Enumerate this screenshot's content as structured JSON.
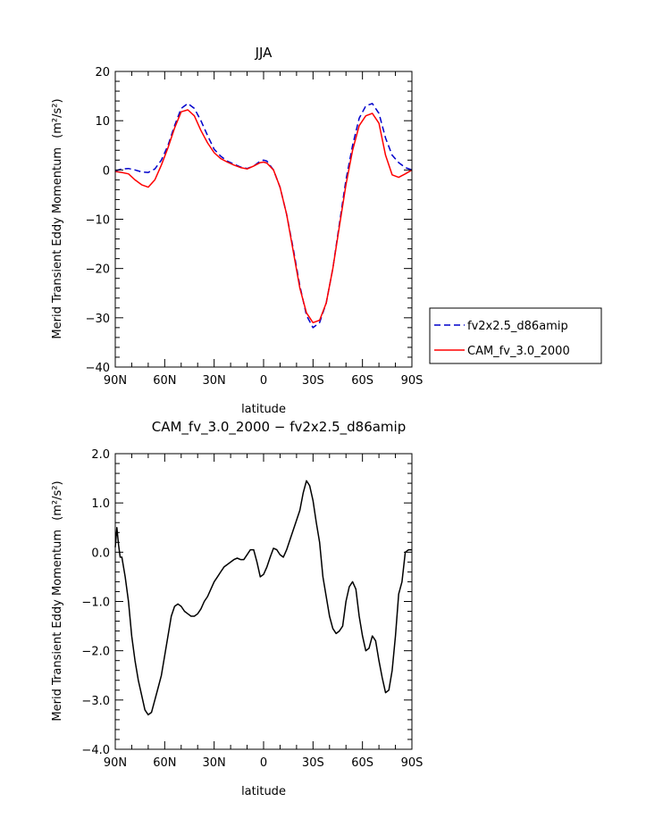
{
  "chart_data": [
    {
      "type": "line",
      "title": "JJA",
      "xlabel": "latitude",
      "ylabel": "Merid Transient Eddy Momentum",
      "ylabel_units": "(m²/s²)",
      "xlim": [
        90,
        -90
      ],
      "ylim": [
        -40,
        20
      ],
      "x_tick_values": [
        90,
        60,
        30,
        0,
        -30,
        -60,
        -90
      ],
      "x_tick_labels": [
        "90N",
        "60N",
        "30N",
        "0",
        "30S",
        "60S",
        "90S"
      ],
      "y_tick_values": [
        -40,
        -30,
        -20,
        -10,
        0,
        10,
        20
      ],
      "y_tick_labels": [
        "−40",
        "−30",
        "−20",
        "−10",
        "0",
        "10",
        "20"
      ],
      "legend_position": "right",
      "series": [
        {
          "name": "fv2x2.5_d86amip",
          "color": "#0000cc",
          "dash": "dashed",
          "x": [
            90,
            86,
            82,
            78,
            74,
            70,
            66,
            62,
            58,
            54,
            50,
            46,
            42,
            38,
            34,
            30,
            26,
            22,
            18,
            14,
            10,
            6,
            2,
            0,
            -2,
            -6,
            -10,
            -14,
            -18,
            -22,
            -26,
            -30,
            -34,
            -38,
            -42,
            -46,
            -50,
            -54,
            -58,
            -62,
            -66,
            -70,
            -74,
            -78,
            -82,
            -86,
            -90
          ],
          "values": [
            -0.2,
            0.2,
            0.3,
            0.0,
            -0.4,
            -0.5,
            0.2,
            2.0,
            5.0,
            9.0,
            12.5,
            13.5,
            12.5,
            10.0,
            7.0,
            4.2,
            2.8,
            1.8,
            1.2,
            0.6,
            0.3,
            0.8,
            1.8,
            2.0,
            1.8,
            0.0,
            -3.5,
            -9.0,
            -16.0,
            -23.5,
            -29.5,
            -32.0,
            -31.0,
            -27.0,
            -20.0,
            -11.0,
            -2.0,
            5.0,
            10.5,
            13.0,
            13.5,
            11.5,
            6.5,
            3.0,
            1.5,
            0.5,
            0.0
          ]
        },
        {
          "name": "CAM_fv_3.0_2000",
          "color": "#ff0000",
          "dash": "solid",
          "x": [
            90,
            86,
            82,
            78,
            74,
            70,
            66,
            62,
            58,
            54,
            50,
            46,
            42,
            38,
            34,
            30,
            26,
            22,
            18,
            14,
            10,
            6,
            2,
            0,
            -2,
            -6,
            -10,
            -14,
            -18,
            -22,
            -26,
            -30,
            -34,
            -38,
            -42,
            -46,
            -50,
            -54,
            -58,
            -62,
            -66,
            -70,
            -74,
            -78,
            -82,
            -86,
            -90
          ],
          "values": [
            -0.3,
            -0.5,
            -0.8,
            -2.0,
            -3.0,
            -3.5,
            -2.0,
            1.0,
            4.5,
            8.5,
            11.8,
            12.2,
            11.0,
            8.0,
            5.5,
            3.5,
            2.3,
            1.6,
            1.0,
            0.5,
            0.2,
            0.8,
            1.5,
            1.6,
            1.4,
            0.0,
            -3.5,
            -9.0,
            -16.5,
            -24.0,
            -29.0,
            -31.0,
            -30.5,
            -27.0,
            -20.0,
            -11.5,
            -3.0,
            4.0,
            9.0,
            11.0,
            11.5,
            9.5,
            3.0,
            -1.0,
            -1.5,
            -0.8,
            0.0
          ]
        }
      ]
    },
    {
      "type": "line",
      "title": "CAM_fv_3.0_2000 − fv2x2.5_d86amip",
      "xlabel": "latitude",
      "ylabel": "Merid Transient Eddy Momentum",
      "ylabel_units": "(m²/s²)",
      "xlim": [
        90,
        -90
      ],
      "ylim": [
        -4,
        2
      ],
      "x_tick_values": [
        90,
        60,
        30,
        0,
        -30,
        -60,
        -90
      ],
      "x_tick_labels": [
        "90N",
        "60N",
        "30N",
        "0",
        "30S",
        "60S",
        "90S"
      ],
      "y_tick_values": [
        -4,
        -3,
        -2,
        -1,
        0,
        1,
        2
      ],
      "y_tick_labels": [
        "−4.0",
        "−3.0",
        "−2.0",
        "−1.0",
        "0.0",
        "1.0",
        "2.0"
      ],
      "series": [
        {
          "color": "#000000",
          "dash": "solid",
          "x": [
            90,
            89,
            88,
            87,
            86,
            84,
            82,
            80,
            78,
            76,
            74,
            72,
            70,
            68,
            66,
            64,
            62,
            60,
            58,
            56,
            54,
            52,
            50,
            48,
            46,
            44,
            42,
            40,
            38,
            36,
            34,
            32,
            30,
            28,
            26,
            24,
            22,
            20,
            18,
            16,
            14,
            12,
            10,
            8,
            6,
            4,
            2,
            0,
            -2,
            -4,
            -6,
            -8,
            -10,
            -12,
            -14,
            -16,
            -18,
            -20,
            -22,
            -24,
            -26,
            -28,
            -30,
            -32,
            -34,
            -36,
            -38,
            -40,
            -42,
            -44,
            -46,
            -48,
            -50,
            -52,
            -54,
            -56,
            -58,
            -60,
            -62,
            -64,
            -66,
            -68,
            -70,
            -72,
            -74,
            -76,
            -78,
            -80,
            -82,
            -84,
            -86,
            -88,
            -90
          ],
          "values": [
            0.1,
            0.5,
            0.15,
            -0.1,
            -0.1,
            -0.5,
            -1.0,
            -1.7,
            -2.2,
            -2.6,
            -2.9,
            -3.2,
            -3.3,
            -3.25,
            -3.0,
            -2.75,
            -2.5,
            -2.1,
            -1.7,
            -1.3,
            -1.1,
            -1.05,
            -1.1,
            -1.2,
            -1.25,
            -1.3,
            -1.3,
            -1.25,
            -1.15,
            -1.0,
            -0.9,
            -0.75,
            -0.6,
            -0.5,
            -0.4,
            -0.3,
            -0.25,
            -0.2,
            -0.15,
            -0.12,
            -0.15,
            -0.15,
            -0.05,
            0.05,
            0.05,
            -0.2,
            -0.5,
            -0.45,
            -0.3,
            -0.1,
            0.08,
            0.05,
            -0.05,
            -0.1,
            0.05,
            0.25,
            0.45,
            0.65,
            0.85,
            1.2,
            1.45,
            1.35,
            1.05,
            0.6,
            0.2,
            -0.5,
            -0.9,
            -1.3,
            -1.55,
            -1.65,
            -1.6,
            -1.5,
            -1.0,
            -0.7,
            -0.6,
            -0.75,
            -1.3,
            -1.7,
            -2.0,
            -1.95,
            -1.7,
            -1.8,
            -2.2,
            -2.55,
            -2.85,
            -2.8,
            -2.4,
            -1.7,
            -0.85,
            -0.6,
            0.0,
            0.05,
            0.05
          ]
        }
      ]
    }
  ]
}
